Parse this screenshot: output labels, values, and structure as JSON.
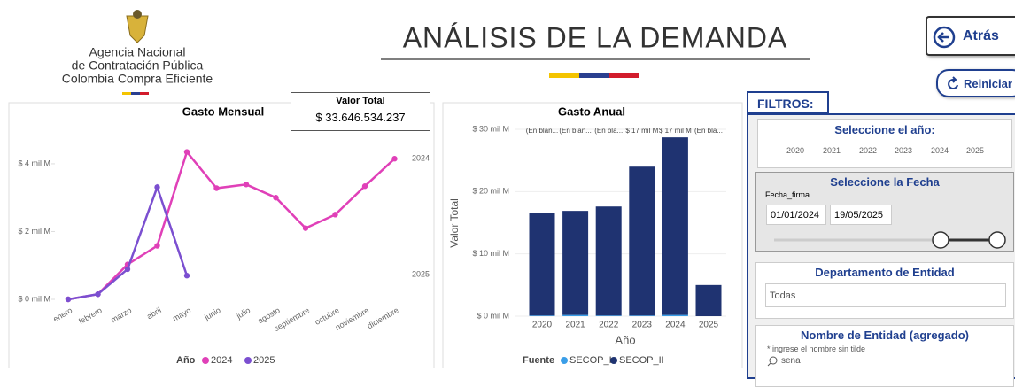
{
  "header": {
    "logo_lines": [
      "Agencia Nacional",
      "de Contratación Pública",
      "Colombia Compra Eficiente"
    ],
    "title": "ANÁLISIS DE LA DEMANDA"
  },
  "buttons": [
    "Atrás",
    "Reiniciar"
  ],
  "kpi": {
    "label": "Valor Total",
    "value": "$ 33.646.534.237"
  },
  "filters": {
    "title": "FILTROS:",
    "year": {
      "title": "Seleccione el año:",
      "options": [
        "2020",
        "2021",
        "2022",
        "2023",
        "2024",
        "2025"
      ]
    },
    "date": {
      "title": "Seleccione la Fecha",
      "field": "Fecha_firma",
      "start": "01/01/2024",
      "end": "19/05/2025"
    },
    "department": {
      "title": "Departamento de Entidad",
      "selected": "Todas"
    },
    "entity": {
      "title": "Nombre de Entidad (agregado)",
      "hint": "* ingrese el nombre sin tilde",
      "query": "sena"
    }
  },
  "chart_data": [
    {
      "type": "line",
      "title": "Gasto Mensual",
      "legend_title": "Año",
      "categories": [
        "enero",
        "febrero",
        "marzo",
        "abril",
        "mayo",
        "junio",
        "julio",
        "agosto",
        "septiembre",
        "octubre",
        "noviembre",
        "diciembre"
      ],
      "series": [
        {
          "name": "2024",
          "color": "#e040b8",
          "values": [
            0,
            0.15,
            1.03,
            1.58,
            4.35,
            3.28,
            3.39,
            3.0,
            2.1,
            2.5,
            3.34,
            4.15
          ]
        },
        {
          "name": "2025",
          "color": "#7b4fd0",
          "values": [
            0,
            0.15,
            0.89,
            3.31,
            0.7,
            null,
            null,
            null,
            null,
            null,
            null,
            null
          ]
        }
      ],
      "ylim": [
        0,
        4.6
      ],
      "yticks": [
        {
          "value": 0,
          "label": "$ 0 mil M"
        },
        {
          "value": 2,
          "label": "$ 2 mil M"
        },
        {
          "value": 4,
          "label": "$ 4 mil M"
        }
      ]
    },
    {
      "type": "bar",
      "stacked": true,
      "title": "Gasto Anual",
      "y_label": "Valor Total",
      "x_label": "Año",
      "legend_title": "Fuente",
      "categories": [
        "2020",
        "2021",
        "2022",
        "2023",
        "2024",
        "2025"
      ],
      "annotations": [
        "(En blan...",
        "(En blan...",
        "(En bla...",
        "$ 17 mil M",
        "$ 17 mil M",
        "(En bla..."
      ],
      "series": [
        {
          "name": "SECOP_I",
          "color": "#3a9ee8",
          "values": [
            0.1,
            0.2,
            0.1,
            0.1,
            0.2,
            0
          ]
        },
        {
          "name": "SECOP_II",
          "color": "#1f3371",
          "values": [
            16.5,
            16.7,
            17.5,
            23.9,
            28.5,
            5.0
          ]
        }
      ],
      "ylim": [
        0,
        30
      ],
      "yticks": [
        {
          "value": 0,
          "label": "$ 0 mil M"
        },
        {
          "value": 10,
          "label": "$ 10 mil M"
        },
        {
          "value": 20,
          "label": "$ 20 mil M"
        },
        {
          "value": 30,
          "label": "$ 30 mil M"
        }
      ]
    }
  ]
}
